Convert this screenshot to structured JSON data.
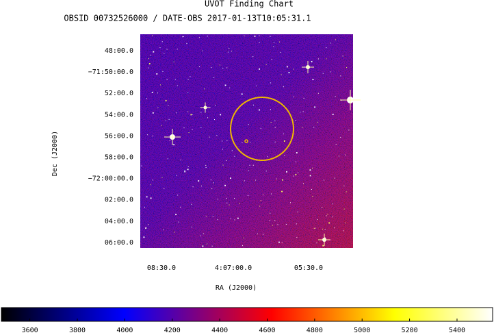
{
  "chart_data": {
    "type": "image",
    "title": "UVOT Finding Chart",
    "subtitle": "OBSID 00732526000 / DATE-OBS 2017-01-13T10:05:31.1",
    "xlabel": "RA (J2000)",
    "ylabel": "Dec (J2000)",
    "xticks": [
      "08:30.0",
      "4:07:00.0",
      "05:30.0"
    ],
    "yticks": [
      "48:00.0",
      "−71:50:00.0",
      "52:00.0",
      "54:00.0",
      "56:00.0",
      "58:00.0",
      "−72:00:00.0",
      "02:00.0",
      "04:00.0",
      "06:00.0"
    ],
    "colorbar": {
      "lim": [
        3480,
        5550
      ],
      "ticks": [
        3600,
        3800,
        4000,
        4200,
        4400,
        4600,
        4800,
        5000,
        5200,
        5400
      ]
    }
  }
}
